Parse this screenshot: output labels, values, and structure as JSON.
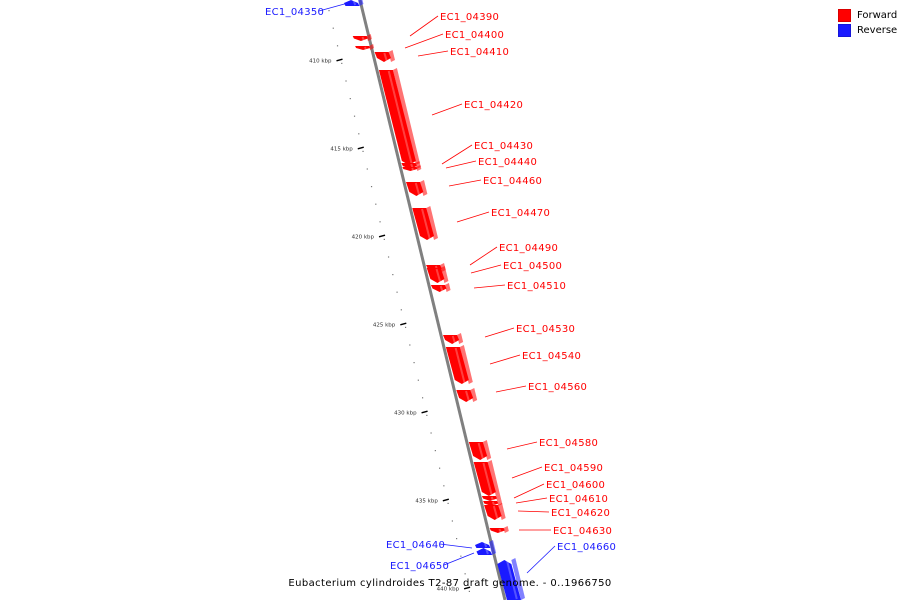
{
  "colors": {
    "forward": "#ff0000",
    "reverse": "#1a1aff",
    "backbone": "#808080"
  },
  "legend": [
    {
      "label": "Forward",
      "color": "#ff0000"
    },
    {
      "label": "Reverse",
      "color": "#1a1aff"
    }
  ],
  "caption": "Eubacterium cylindroides T2-87 draft genome. - 0..1966750",
  "scale": {
    "unit": "kbp",
    "ticks": [
      410,
      415,
      420,
      425,
      430,
      435,
      440
    ],
    "labels": [
      "410 kbp",
      "415 kbp",
      "420 kbp",
      "425 kbp",
      "430 kbp",
      "435 kbp",
      "440 kbp"
    ]
  },
  "genes": [
    {
      "name": "EC1_04350",
      "strand": "reverse"
    },
    {
      "name": "EC1_04390",
      "strand": "forward"
    },
    {
      "name": "EC1_04400",
      "strand": "forward"
    },
    {
      "name": "EC1_04410",
      "strand": "forward"
    },
    {
      "name": "EC1_04420",
      "strand": "forward"
    },
    {
      "name": "EC1_04430",
      "strand": "forward"
    },
    {
      "name": "EC1_04440",
      "strand": "forward"
    },
    {
      "name": "EC1_04460",
      "strand": "forward"
    },
    {
      "name": "EC1_04470",
      "strand": "forward"
    },
    {
      "name": "EC1_04490",
      "strand": "forward"
    },
    {
      "name": "EC1_04500",
      "strand": "forward"
    },
    {
      "name": "EC1_04510",
      "strand": "forward"
    },
    {
      "name": "EC1_04530",
      "strand": "forward"
    },
    {
      "name": "EC1_04540",
      "strand": "forward"
    },
    {
      "name": "EC1_04560",
      "strand": "forward"
    },
    {
      "name": "EC1_04580",
      "strand": "forward"
    },
    {
      "name": "EC1_04590",
      "strand": "forward"
    },
    {
      "name": "EC1_04600",
      "strand": "forward"
    },
    {
      "name": "EC1_04610",
      "strand": "forward"
    },
    {
      "name": "EC1_04620",
      "strand": "forward"
    },
    {
      "name": "EC1_04630",
      "strand": "forward"
    },
    {
      "name": "EC1_04640",
      "strand": "reverse"
    },
    {
      "name": "EC1_04650",
      "strand": "reverse"
    },
    {
      "name": "EC1_04660",
      "strand": "reverse"
    }
  ]
}
